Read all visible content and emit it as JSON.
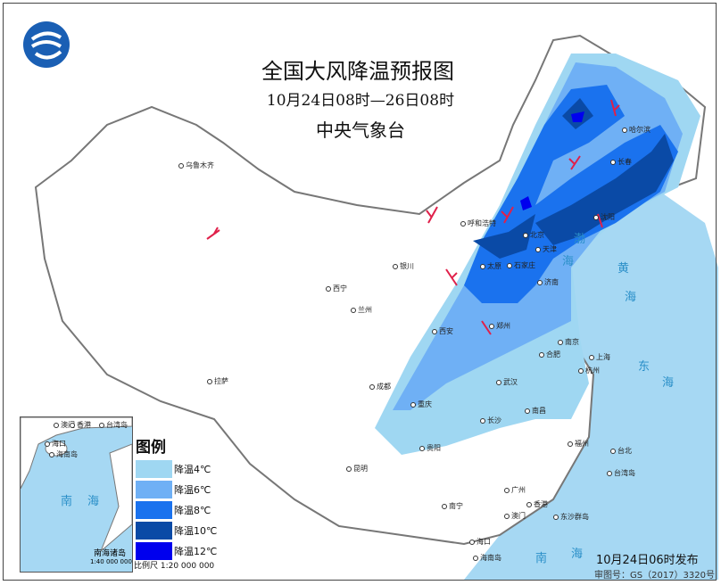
{
  "title": "全国大风降温预报图",
  "period": "10月24日08时—26日08时",
  "issuer": "中央气象台",
  "logo": "中央气象台标志",
  "legend": {
    "title": "图例",
    "items": [
      {
        "label": "降温4℃",
        "color": "#9fd7f2"
      },
      {
        "label": "降温6℃",
        "color": "#6fb0f5"
      },
      {
        "label": "降温8℃",
        "color": "#1a72ee"
      },
      {
        "label": "降温10℃",
        "color": "#0a4aa6"
      },
      {
        "label": "降温12℃",
        "color": "#0000ee"
      }
    ]
  },
  "scale": "比例尺   1:20 000 000",
  "inset": {
    "sea": [
      "南",
      "海"
    ],
    "labels": [
      "澳门",
      "香港",
      "台湾岛",
      "海口",
      "海南岛"
    ],
    "title": "南海诸岛",
    "scale": "1:40 000 000"
  },
  "cities": [
    "乌鲁木齐",
    "拉萨",
    "西宁",
    "兰州",
    "银川",
    "呼和浩特",
    "北京",
    "天津",
    "石家庄",
    "太原",
    "济南",
    "郑州",
    "西安",
    "成都",
    "重庆",
    "武汉",
    "长沙",
    "南昌",
    "合肥",
    "南京",
    "上海",
    "杭州",
    "福州",
    "台北",
    "广州",
    "香港",
    "澳门",
    "南宁",
    "海口",
    "贵阳",
    "昆明",
    "沈阳",
    "长春",
    "哈尔滨"
  ],
  "seas": [
    "渤",
    "海",
    "黄",
    "海",
    "东",
    "海",
    "南",
    "海"
  ],
  "islands": [
    "台湾岛",
    "东沙群岛",
    "海南岛"
  ],
  "published": "10月24日06时发布",
  "approval": "审图号：GS（2017）3320号",
  "colors": {
    "sea": "#a6d8f3",
    "land": "#ffffff",
    "wind_barb": "#e0204a"
  }
}
